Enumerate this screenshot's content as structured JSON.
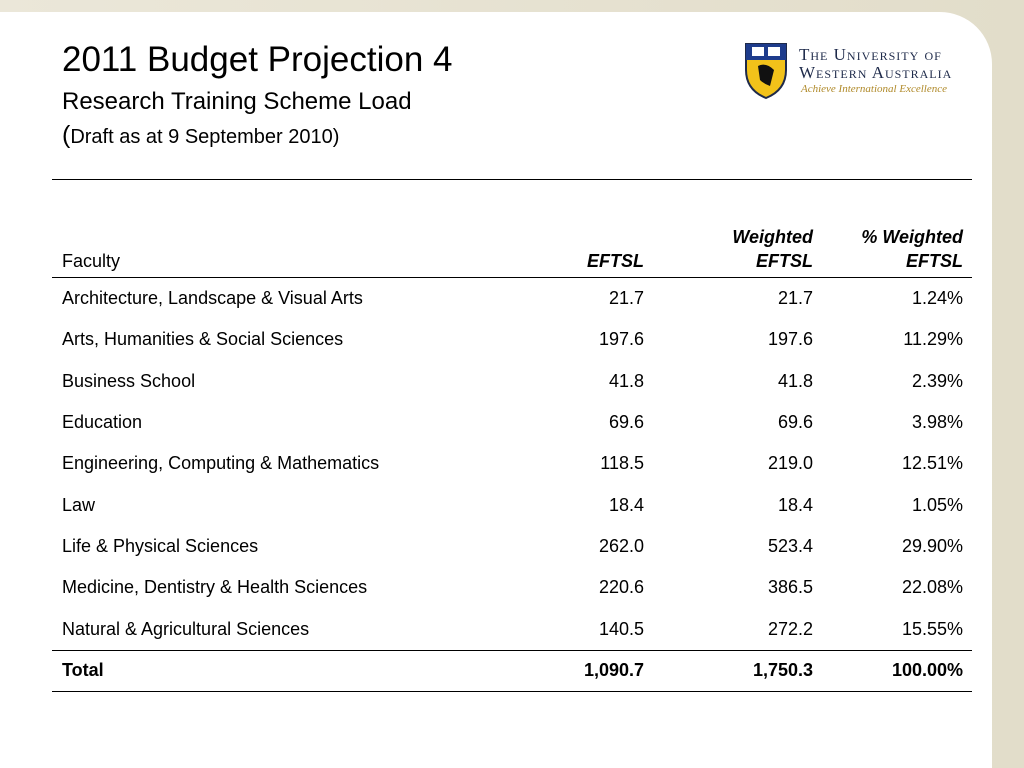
{
  "header": {
    "title": "2011 Budget Projection 4",
    "subtitle": "Research Training Scheme Load",
    "note_open": "(",
    "note": "Draft as at 9 September 2010)"
  },
  "logo": {
    "name": [
      "The University of",
      "Western Australia"
    ],
    "motto": "Achieve International Excellence"
  },
  "table": {
    "columns": [
      [
        "Faculty"
      ],
      [
        "EFTSL"
      ],
      [
        "Weighted",
        "EFTSL"
      ],
      [
        "% Weighted",
        "EFTSL"
      ]
    ],
    "rows": [
      [
        "Architecture, Landscape & Visual Arts",
        "21.7",
        "21.7",
        "1.24%"
      ],
      [
        "Arts, Humanities & Social Sciences",
        "197.6",
        "197.6",
        "11.29%"
      ],
      [
        "Business School",
        "41.8",
        "41.8",
        "2.39%"
      ],
      [
        "Education",
        "69.6",
        "69.6",
        "3.98%"
      ],
      [
        "Engineering, Computing & Mathematics",
        "118.5",
        "219.0",
        "12.51%"
      ],
      [
        "Law",
        "18.4",
        "18.4",
        "1.05%"
      ],
      [
        "Life & Physical Sciences",
        "262.0",
        "523.4",
        "29.90%"
      ],
      [
        "Medicine, Dentistry & Health Sciences",
        "220.6",
        "386.5",
        "22.08%"
      ],
      [
        "Natural & Agricultural Sciences",
        "140.5",
        "272.2",
        "15.55%"
      ]
    ],
    "total": [
      "Total",
      "1,090.7",
      "1,750.3",
      "100.00%"
    ]
  }
}
